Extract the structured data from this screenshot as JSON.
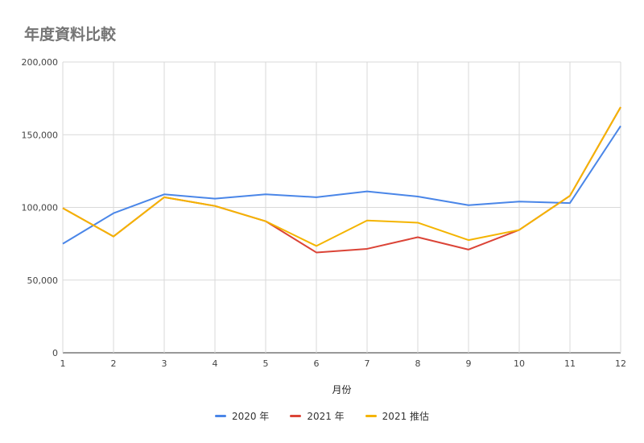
{
  "chart_data": {
    "type": "line",
    "title": "年度資料比較",
    "xlabel": "月份",
    "ylabel": "",
    "x": [
      1,
      2,
      3,
      4,
      5,
      6,
      7,
      8,
      9,
      10,
      11,
      12
    ],
    "ylim": [
      0,
      200000
    ],
    "yticks": [
      0,
      50000,
      100000,
      150000,
      200000
    ],
    "ytick_labels": [
      "0",
      "50,000",
      "100,000",
      "150,000",
      "200,000"
    ],
    "grid": true,
    "legend_position": "bottom",
    "series": [
      {
        "name": "2020 年",
        "color": "#4a86e8",
        "values": [
          75000,
          96000,
          109000,
          106000,
          109000,
          107000,
          111000,
          107500,
          101500,
          104000,
          103000,
          156000
        ]
      },
      {
        "name": "2021 年",
        "color": "#db4437",
        "values": [
          99500,
          80000,
          107000,
          101000,
          90500,
          69000,
          71500,
          79500,
          71000,
          84500,
          108000,
          169000
        ]
      },
      {
        "name": "2021 推估",
        "color": "#f4b400",
        "values": [
          99500,
          80000,
          107000,
          101000,
          90500,
          73500,
          91000,
          89500,
          77500,
          84500,
          108000,
          169000
        ]
      }
    ]
  }
}
